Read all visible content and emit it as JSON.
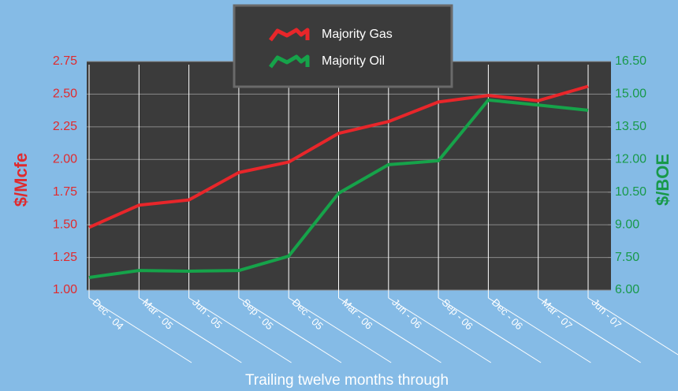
{
  "chart_data": {
    "type": "line",
    "categories": [
      "Dec - 04",
      "Mar - 05",
      "Jun - 05",
      "Sep - 05",
      "Dec - 05",
      "Mar - 06",
      "Jun - 06",
      "Sep - 06",
      "Dec - 06",
      "Mar - 07",
      "Jun - 07"
    ],
    "series": [
      {
        "name": "Majority Gas",
        "color": "#e8262a",
        "values": [
          1.48,
          1.65,
          1.69,
          1.9,
          1.98,
          2.2,
          2.29,
          2.44,
          2.49,
          2.45,
          2.56
        ]
      },
      {
        "name": "Majority Oil",
        "color": "#16a34a",
        "axis": "y2",
        "values": [
          6.58,
          6.9,
          6.87,
          6.9,
          7.56,
          10.45,
          11.76,
          11.94,
          14.73,
          14.5,
          14.26
        ]
      }
    ],
    "ylabel": "$/Mcfe",
    "y2label": "$/BOE",
    "xlabel": "Trailing twelve months through",
    "ylim": [
      1,
      2.75
    ],
    "yticks": [
      {
        "value": 1,
        "label": "1.00"
      },
      1.25,
      {
        "value": 1.5,
        "label": "1.50"
      },
      1.75,
      {
        "value": 2,
        "label": "2.00"
      },
      2.25,
      {
        "value": 2.5,
        "label": "2.50"
      },
      2.75
    ],
    "y2lim": [
      6,
      16.5
    ],
    "y2ticks": [
      {
        "value": 6,
        "label": "6.00"
      },
      {
        "value": 7.5,
        "label": "7.50"
      },
      {
        "value": 9,
        "label": "9.00"
      },
      {
        "value": 10.5,
        "label": "10.50"
      },
      {
        "value": 12,
        "label": "12.00"
      },
      {
        "value": 13.5,
        "label": "13.50"
      },
      {
        "value": 15,
        "label": "15.00"
      },
      {
        "value": 16.5,
        "label": "16.50"
      }
    ],
    "grid": true
  }
}
